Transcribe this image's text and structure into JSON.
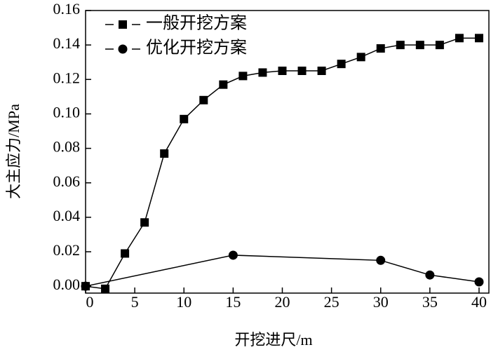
{
  "chart_data": {
    "type": "line",
    "xlabel": "开挖进尺/m",
    "ylabel": "大主应力/MPa",
    "xlim": [
      0,
      41
    ],
    "ylim": [
      -0.004,
      0.16
    ],
    "xticks": [
      0,
      5,
      10,
      15,
      20,
      25,
      30,
      35,
      40
    ],
    "yticks": [
      {
        "value": 0,
        "label": "0.00"
      },
      {
        "value": 0.02,
        "label": "0.02"
      },
      {
        "value": 0.04,
        "label": "0.04"
      },
      {
        "value": 0.06,
        "label": "0.06"
      },
      {
        "value": 0.08,
        "label": "0.08"
      },
      {
        "value": 0.1,
        "label": "0.10"
      },
      {
        "value": 0.12,
        "label": "0.12"
      },
      {
        "value": 0.14,
        "label": "0.14"
      },
      {
        "value": 0.16,
        "label": "0.16"
      }
    ],
    "legend": "upper left",
    "series": [
      {
        "name": "一般开挖方案",
        "color": "#000000",
        "marker": "square",
        "x": [
          0,
          2,
          4,
          6,
          8,
          10,
          12,
          14,
          16,
          18,
          20,
          22,
          24,
          26,
          28,
          30,
          32,
          34,
          36,
          38,
          40
        ],
        "values": [
          0,
          -0.0015,
          0.019,
          0.037,
          0.077,
          0.097,
          0.108,
          0.117,
          0.122,
          0.124,
          0.125,
          0.125,
          0.125,
          0.129,
          0.133,
          0.138,
          0.14,
          0.14,
          0.14,
          0.144,
          0.144
        ]
      },
      {
        "name": "优化开挖方案",
        "color": "#000000",
        "marker": "circle",
        "x": [
          0,
          15,
          30,
          35,
          40
        ],
        "values": [
          0,
          0.018,
          0.015,
          0.0065,
          0.0025
        ]
      }
    ]
  }
}
